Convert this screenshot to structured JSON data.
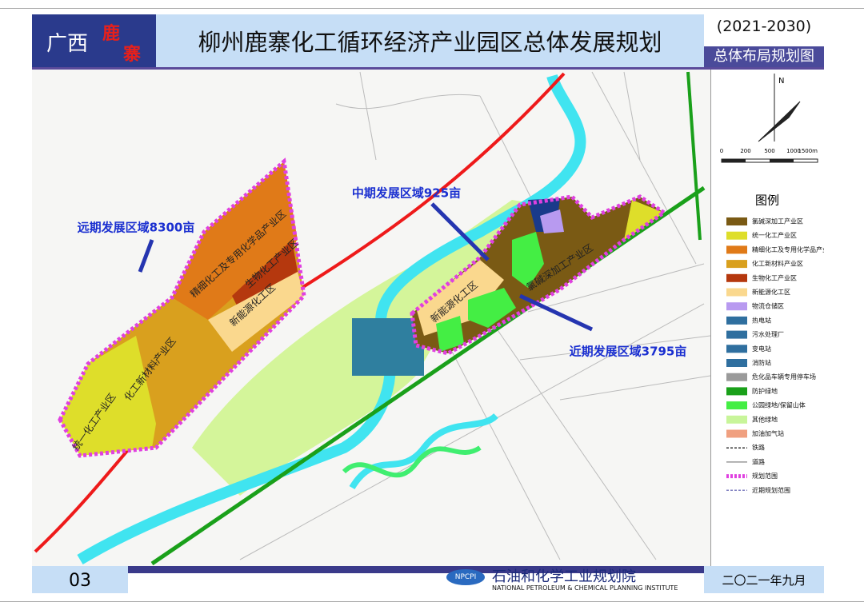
{
  "header": {
    "region_1": "广西",
    "region_2": "鹿",
    "region_3": "寨",
    "title": "柳州鹿寨化工循环经济产业园区总体发展规划",
    "period": "(2021-2030)",
    "subtitle": "总体布局规划图"
  },
  "map": {
    "areas": [
      "远期发展区域8300亩",
      "中期发展区域925亩",
      "近期发展区域3795亩"
    ],
    "zones": [
      "精细化工及专用化学品产业区",
      "生物化工产业区",
      "新能源化工区",
      "化工新材料产业区",
      "统一化工产业区",
      "新能源化工区",
      "氯碱深加工产业区"
    ],
    "compass": "N",
    "scale": [
      "0",
      "200",
      "500",
      "1000",
      "1500m"
    ]
  },
  "legend": {
    "title": "图例",
    "items": [
      {
        "label": "氯碱深加工产业区",
        "color": "#7a5a14"
      },
      {
        "label": "统一化工产业区",
        "color": "#dede2a"
      },
      {
        "label": "精细化工及专用化学品产业区",
        "color": "#e07a18"
      },
      {
        "label": "化工新材料产业区",
        "color": "#d9a01e"
      },
      {
        "label": "生物化工产业区",
        "color": "#b5380e"
      },
      {
        "label": "新能源化工区",
        "color": "#fad88e"
      },
      {
        "label": "物流仓储区",
        "color": "#b89af0"
      },
      {
        "label": "热电站",
        "color": "#2f6f9f"
      },
      {
        "label": "污水处理厂",
        "color": "#2f6f9f"
      },
      {
        "label": "变电站",
        "color": "#2f6f9f"
      },
      {
        "label": "消防站",
        "color": "#2f6f9f"
      },
      {
        "label": "危化品车辆专用停车场",
        "color": "#9a9a9a"
      },
      {
        "label": "防护绿地",
        "color": "#1aa01a"
      },
      {
        "label": "公园绿地/保留山体",
        "color": "#44ee44"
      },
      {
        "label": "其他绿地",
        "color": "#c8f59a"
      },
      {
        "label": "加油加气站",
        "color": "#f0a080"
      },
      {
        "label": "铁路",
        "color": "#333333"
      },
      {
        "label": "道路",
        "color": "#999999"
      },
      {
        "label": "规划范围",
        "color": "#e040e0"
      },
      {
        "label": "近期规划范围",
        "color": "#8080c0"
      }
    ]
  },
  "footer": {
    "page": "03",
    "logo": "NPCPI",
    "institute": "石油和化学工业规划院",
    "institute_en": "NATIONAL PETROLEUM & CHEMICAL PLANNING INSTITUTE",
    "date": "二〇二一年九月"
  }
}
